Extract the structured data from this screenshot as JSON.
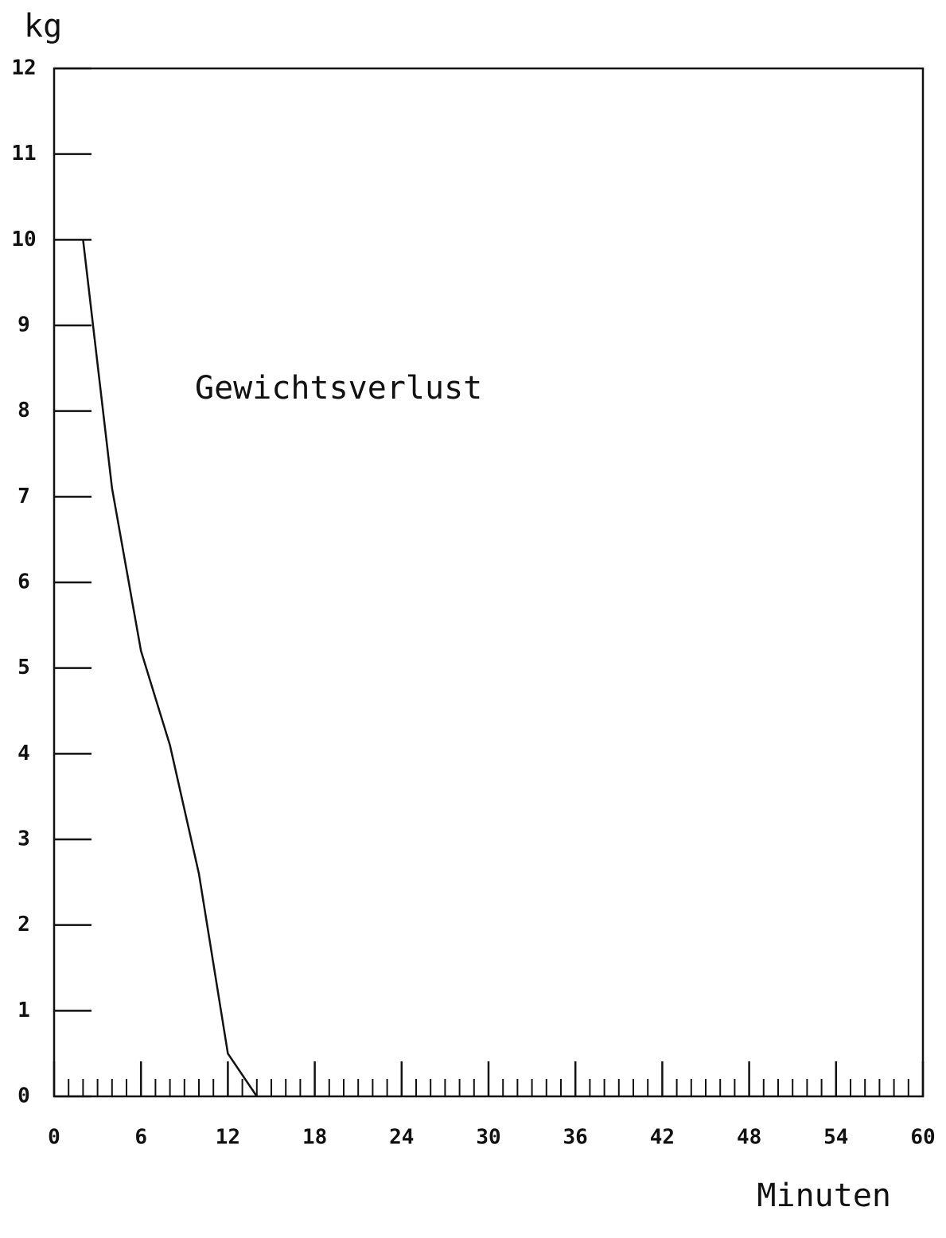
{
  "chart_data": {
    "type": "line",
    "ylabel": "kg",
    "xlabel": "Minuten",
    "annotation": "Gewichtsverlust",
    "xlim": [
      0,
      60
    ],
    "ylim": [
      0,
      12
    ],
    "xticks": [
      0,
      6,
      12,
      18,
      24,
      30,
      36,
      42,
      48,
      54,
      60
    ],
    "xminorticks": [
      1,
      2,
      3,
      4,
      5,
      7,
      8,
      9,
      10,
      11,
      13,
      14,
      15,
      16,
      17,
      19,
      20,
      21,
      22,
      23,
      25,
      26,
      27,
      28,
      29,
      31,
      32,
      33,
      34,
      35,
      37,
      38,
      39,
      40,
      41,
      43,
      44,
      45,
      46,
      47,
      49,
      50,
      51,
      52,
      53,
      55,
      56,
      57,
      58,
      59
    ],
    "yticks": [
      0,
      1,
      2,
      3,
      4,
      5,
      6,
      7,
      8,
      9,
      10,
      11,
      12
    ],
    "x": [
      2,
      4,
      6,
      8,
      10,
      12,
      14
    ],
    "series": [
      {
        "name": "Gewichtsverlust",
        "color": "#111111",
        "values": [
          10,
          7.1,
          5.2,
          4.1,
          2.6,
          0.5,
          0
        ]
      }
    ]
  }
}
